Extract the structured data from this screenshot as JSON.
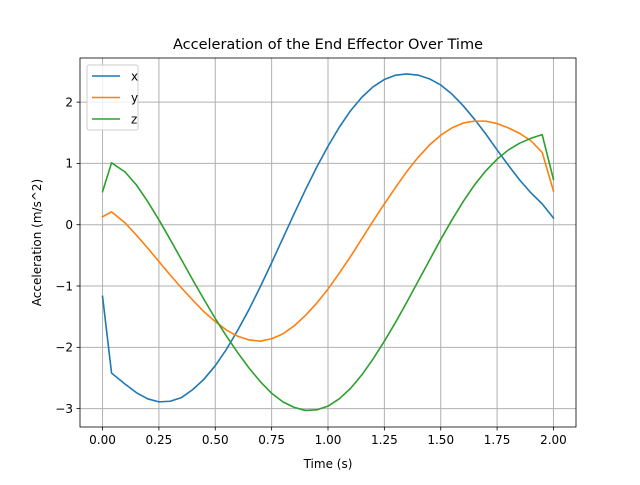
{
  "chart_data": {
    "type": "line",
    "title": "Acceleration of the End Effector Over Time",
    "xlabel": "Time (s)",
    "ylabel": "Acceleration (m/s^2)",
    "xlim": [
      -0.1,
      2.1
    ],
    "ylim": [
      -3.3,
      2.72
    ],
    "grid": true,
    "legend_position": "upper-left",
    "x_ticks": [
      0.0,
      0.25,
      0.5,
      0.75,
      1.0,
      1.25,
      1.5,
      1.75,
      2.0
    ],
    "x_tick_labels": [
      "0.00",
      "0.25",
      "0.50",
      "0.75",
      "1.00",
      "1.25",
      "1.50",
      "1.75",
      "2.00"
    ],
    "y_ticks": [
      -3,
      -2,
      -1,
      0,
      1,
      2
    ],
    "y_tick_labels": [
      "−3",
      "−2",
      "−1",
      "0",
      "1",
      "2"
    ],
    "series": [
      {
        "name": "x",
        "color": "#1f77b4",
        "points": [
          [
            0.0,
            -1.17
          ],
          [
            0.04,
            -2.42
          ],
          [
            0.1,
            -2.6
          ],
          [
            0.15,
            -2.74
          ],
          [
            0.2,
            -2.84
          ],
          [
            0.25,
            -2.89
          ],
          [
            0.3,
            -2.88
          ],
          [
            0.35,
            -2.82
          ],
          [
            0.4,
            -2.69
          ],
          [
            0.45,
            -2.52
          ],
          [
            0.5,
            -2.3
          ],
          [
            0.55,
            -2.03
          ],
          [
            0.6,
            -1.72
          ],
          [
            0.65,
            -1.38
          ],
          [
            0.7,
            -1.01
          ],
          [
            0.75,
            -0.62
          ],
          [
            0.8,
            -0.22
          ],
          [
            0.85,
            0.18
          ],
          [
            0.9,
            0.57
          ],
          [
            0.95,
            0.94
          ],
          [
            1.0,
            1.28
          ],
          [
            1.05,
            1.59
          ],
          [
            1.1,
            1.86
          ],
          [
            1.15,
            2.08
          ],
          [
            1.2,
            2.25
          ],
          [
            1.25,
            2.37
          ],
          [
            1.3,
            2.44
          ],
          [
            1.35,
            2.46
          ],
          [
            1.4,
            2.44
          ],
          [
            1.45,
            2.38
          ],
          [
            1.5,
            2.28
          ],
          [
            1.55,
            2.13
          ],
          [
            1.6,
            1.94
          ],
          [
            1.65,
            1.72
          ],
          [
            1.7,
            1.48
          ],
          [
            1.75,
            1.22
          ],
          [
            1.8,
            0.97
          ],
          [
            1.85,
            0.73
          ],
          [
            1.9,
            0.52
          ],
          [
            1.95,
            0.34
          ],
          [
            2.0,
            0.11
          ]
        ]
      },
      {
        "name": "y",
        "color": "#ff7f0e",
        "points": [
          [
            0.0,
            0.13
          ],
          [
            0.04,
            0.21
          ],
          [
            0.1,
            0.03
          ],
          [
            0.15,
            -0.17
          ],
          [
            0.2,
            -0.38
          ],
          [
            0.25,
            -0.6
          ],
          [
            0.3,
            -0.82
          ],
          [
            0.35,
            -1.03
          ],
          [
            0.4,
            -1.23
          ],
          [
            0.45,
            -1.42
          ],
          [
            0.5,
            -1.58
          ],
          [
            0.55,
            -1.72
          ],
          [
            0.6,
            -1.82
          ],
          [
            0.65,
            -1.88
          ],
          [
            0.7,
            -1.9
          ],
          [
            0.75,
            -1.86
          ],
          [
            0.8,
            -1.78
          ],
          [
            0.85,
            -1.65
          ],
          [
            0.9,
            -1.48
          ],
          [
            0.95,
            -1.28
          ],
          [
            1.0,
            -1.05
          ],
          [
            1.05,
            -0.79
          ],
          [
            1.1,
            -0.52
          ],
          [
            1.15,
            -0.23
          ],
          [
            1.2,
            0.06
          ],
          [
            1.25,
            0.34
          ],
          [
            1.3,
            0.61
          ],
          [
            1.35,
            0.87
          ],
          [
            1.4,
            1.1
          ],
          [
            1.45,
            1.3
          ],
          [
            1.5,
            1.46
          ],
          [
            1.55,
            1.58
          ],
          [
            1.6,
            1.66
          ],
          [
            1.65,
            1.69
          ],
          [
            1.7,
            1.69
          ],
          [
            1.75,
            1.65
          ],
          [
            1.8,
            1.58
          ],
          [
            1.85,
            1.49
          ],
          [
            1.9,
            1.37
          ],
          [
            1.95,
            1.18
          ],
          [
            2.0,
            0.55
          ]
        ]
      },
      {
        "name": "z",
        "color": "#2ca02c",
        "points": [
          [
            0.0,
            0.54
          ],
          [
            0.04,
            1.01
          ],
          [
            0.1,
            0.86
          ],
          [
            0.15,
            0.65
          ],
          [
            0.2,
            0.38
          ],
          [
            0.25,
            0.08
          ],
          [
            0.3,
            -0.24
          ],
          [
            0.35,
            -0.57
          ],
          [
            0.4,
            -0.9
          ],
          [
            0.45,
            -1.22
          ],
          [
            0.5,
            -1.53
          ],
          [
            0.55,
            -1.82
          ],
          [
            0.6,
            -2.09
          ],
          [
            0.65,
            -2.34
          ],
          [
            0.7,
            -2.56
          ],
          [
            0.75,
            -2.75
          ],
          [
            0.8,
            -2.89
          ],
          [
            0.85,
            -2.98
          ],
          [
            0.9,
            -3.03
          ],
          [
            0.95,
            -3.02
          ],
          [
            1.0,
            -2.96
          ],
          [
            1.05,
            -2.84
          ],
          [
            1.1,
            -2.67
          ],
          [
            1.15,
            -2.45
          ],
          [
            1.2,
            -2.19
          ],
          [
            1.25,
            -1.9
          ],
          [
            1.3,
            -1.59
          ],
          [
            1.35,
            -1.26
          ],
          [
            1.4,
            -0.92
          ],
          [
            1.45,
            -0.58
          ],
          [
            1.5,
            -0.24
          ],
          [
            1.55,
            0.08
          ],
          [
            1.6,
            0.38
          ],
          [
            1.65,
            0.65
          ],
          [
            1.7,
            0.88
          ],
          [
            1.75,
            1.07
          ],
          [
            1.8,
            1.22
          ],
          [
            1.85,
            1.33
          ],
          [
            1.9,
            1.41
          ],
          [
            1.95,
            1.47
          ],
          [
            2.0,
            0.74
          ]
        ]
      }
    ]
  }
}
